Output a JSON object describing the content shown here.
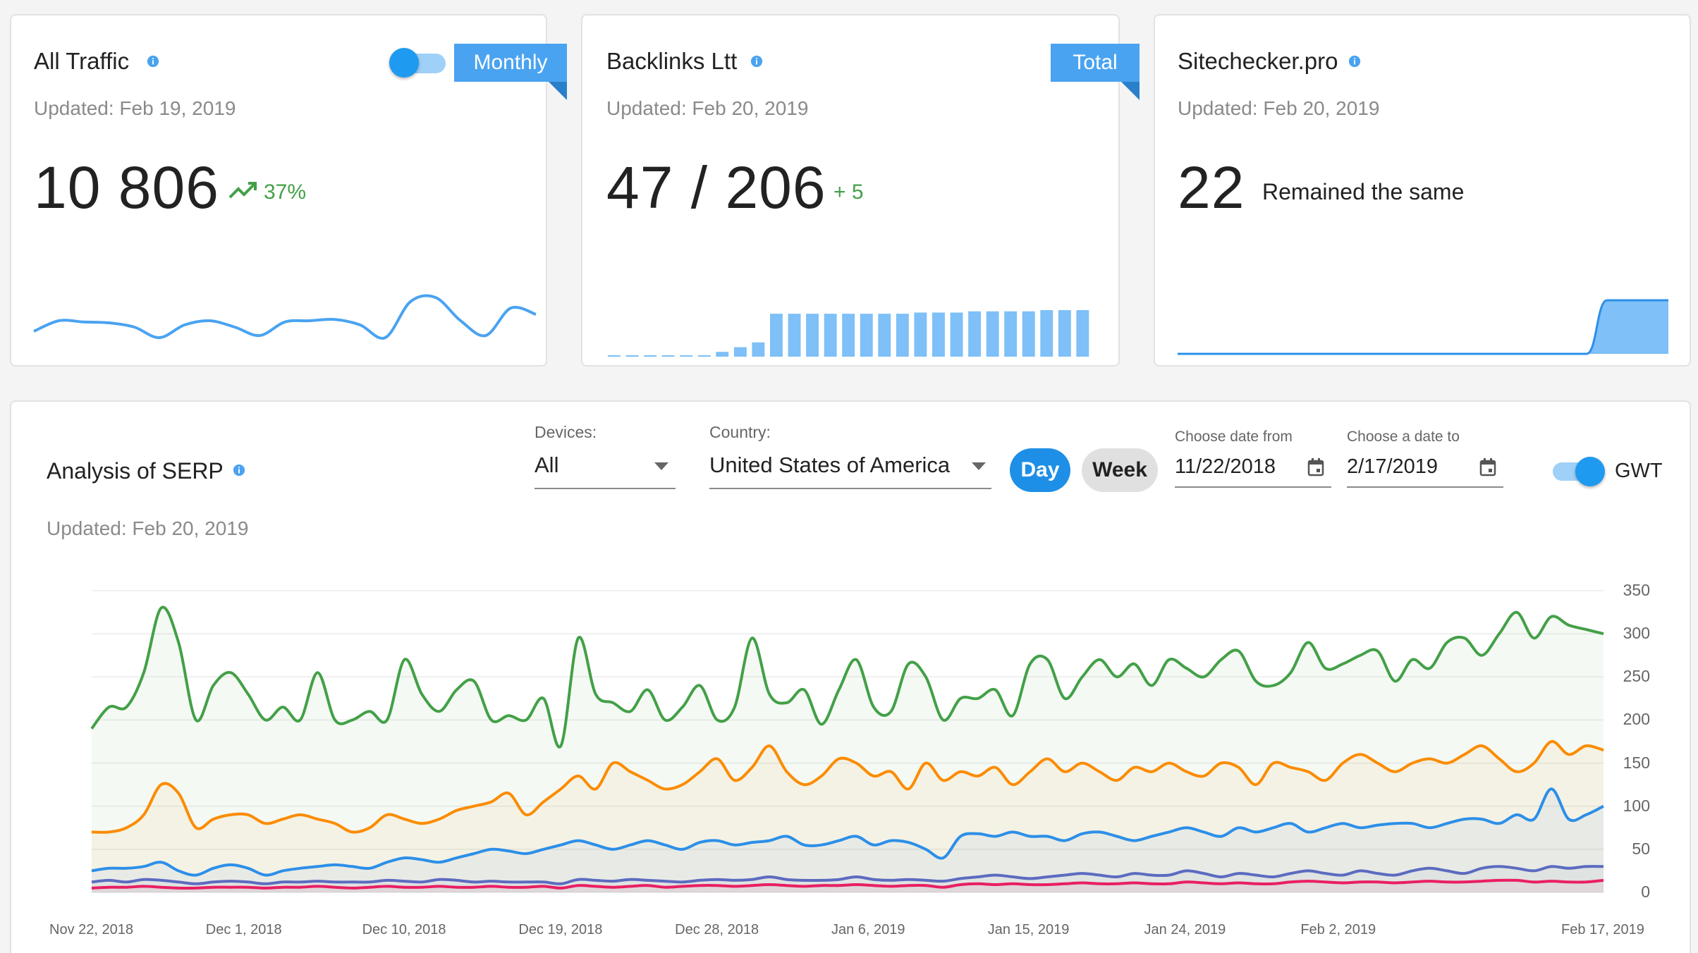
{
  "cards": {
    "traffic": {
      "title": "All Traffic",
      "ribbon": "Monthly",
      "updated": "Updated: Feb 19, 2019",
      "value": "10 806",
      "delta": "37%",
      "sparkline": [
        0.2,
        0.45,
        0.42,
        0.4,
        0.3,
        0.05,
        0.35,
        0.45,
        0.3,
        0.1,
        0.42,
        0.45,
        0.48,
        0.35,
        0.05,
        0.9,
        1.0,
        0.45,
        0.1,
        0.75,
        0.6
      ],
      "colors": {
        "line": "#4aa3f0",
        "delta": "#43a047"
      }
    },
    "backlinks": {
      "title": "Backlinks Ltt",
      "ribbon": "Total",
      "updated": "Updated: Feb 20, 2019",
      "value": "47 / 206",
      "delta": "+ 5",
      "bars": [
        1,
        1,
        1,
        1,
        1,
        1,
        4,
        8,
        12,
        36,
        36,
        36,
        36,
        36,
        36,
        36,
        36,
        37,
        37,
        37,
        38,
        38,
        38,
        38,
        39,
        39,
        39
      ],
      "colors": {
        "bar": "#7ec0f7"
      }
    },
    "sitechecker": {
      "title": "Sitechecker.pro",
      "updated": "Updated: Feb 20, 2019",
      "value": "22",
      "note": "Remained the same",
      "area_levels": [
        0,
        0,
        0,
        0,
        0,
        0,
        0,
        0,
        0,
        0,
        0,
        0,
        0,
        0,
        0,
        0,
        0,
        0,
        0,
        0,
        0,
        1,
        1,
        1,
        1
      ],
      "colors": {
        "fill": "#7ec0f7",
        "line": "#2c8fe8"
      }
    }
  },
  "serp": {
    "title": "Analysis of SERP",
    "updated": "Updated: Feb 20, 2019",
    "devices": {
      "label": "Devices:",
      "value": "All"
    },
    "country": {
      "label": "Country:",
      "value": "United States of America"
    },
    "day_label": "Day",
    "week_label": "Week",
    "date_from": {
      "label": "Choose date from",
      "value": "11/22/2018"
    },
    "date_to": {
      "label": "Choose a date to",
      "value": "2/17/2019"
    },
    "gwt_label": "GWT"
  },
  "chart_data": {
    "type": "line",
    "x_labels": [
      "Nov 22, 2018",
      "Dec 1, 2018",
      "Dec 10, 2018",
      "Dec 19, 2018",
      "Dec 28, 2018",
      "Jan 6, 2019",
      "Jan 15, 2019",
      "Jan 24, 2019",
      "Feb 2, 2019",
      "Feb 17, 2019"
    ],
    "x_label_days": [
      0,
      9,
      18,
      27,
      36,
      45,
      54,
      63,
      72,
      87
    ],
    "ylim": [
      0,
      350
    ],
    "yticks": [
      0,
      50,
      100,
      150,
      200,
      250,
      300,
      350
    ],
    "series": [
      {
        "color": "#43a047",
        "values": [
          190,
          215,
          215,
          255,
          330,
          290,
          200,
          240,
          255,
          230,
          200,
          215,
          200,
          255,
          200,
          200,
          210,
          200,
          270,
          230,
          210,
          235,
          245,
          200,
          205,
          200,
          225,
          170,
          295,
          230,
          220,
          210,
          235,
          200,
          215,
          240,
          200,
          215,
          295,
          230,
          220,
          235,
          195,
          235,
          270,
          215,
          210,
          265,
          250,
          200,
          225,
          225,
          235,
          205,
          265,
          270,
          225,
          250,
          270,
          250,
          265,
          240,
          270,
          260,
          250,
          270,
          280,
          245,
          240,
          255,
          290,
          260,
          265,
          275,
          280,
          245,
          270,
          260,
          290,
          295,
          275,
          300,
          325,
          295,
          320,
          310,
          305,
          300
        ]
      },
      {
        "color": "#fb8c00",
        "values": [
          70,
          70,
          75,
          90,
          125,
          115,
          75,
          85,
          90,
          90,
          80,
          85,
          90,
          85,
          80,
          70,
          75,
          90,
          85,
          80,
          85,
          95,
          100,
          105,
          115,
          90,
          105,
          120,
          135,
          120,
          150,
          140,
          130,
          120,
          125,
          140,
          155,
          130,
          145,
          170,
          140,
          125,
          135,
          155,
          150,
          135,
          140,
          120,
          150,
          130,
          140,
          135,
          145,
          125,
          140,
          155,
          140,
          150,
          140,
          130,
          145,
          140,
          150,
          140,
          135,
          150,
          145,
          125,
          150,
          145,
          140,
          130,
          150,
          160,
          150,
          140,
          150,
          155,
          150,
          160,
          170,
          155,
          140,
          150,
          175,
          160,
          170,
          165
        ]
      },
      {
        "color": "#2c8fe8",
        "values": [
          25,
          28,
          28,
          30,
          35,
          25,
          20,
          28,
          32,
          28,
          20,
          25,
          28,
          30,
          32,
          30,
          28,
          35,
          40,
          38,
          35,
          40,
          45,
          50,
          48,
          45,
          50,
          55,
          60,
          55,
          50,
          55,
          60,
          55,
          50,
          58,
          60,
          55,
          58,
          60,
          65,
          55,
          55,
          60,
          65,
          55,
          60,
          58,
          50,
          40,
          65,
          68,
          65,
          70,
          65,
          65,
          60,
          68,
          70,
          65,
          60,
          65,
          70,
          75,
          70,
          65,
          75,
          70,
          75,
          80,
          70,
          75,
          80,
          75,
          78,
          80,
          80,
          75,
          80,
          85,
          85,
          80,
          90,
          85,
          120,
          85,
          90,
          100
        ]
      },
      {
        "color": "#5c6bc0",
        "values": [
          12,
          14,
          12,
          15,
          14,
          12,
          10,
          12,
          13,
          12,
          10,
          12,
          12,
          13,
          12,
          12,
          12,
          14,
          13,
          12,
          15,
          14,
          12,
          13,
          12,
          12,
          12,
          10,
          15,
          14,
          13,
          15,
          14,
          13,
          12,
          14,
          15,
          14,
          15,
          18,
          15,
          14,
          14,
          15,
          18,
          15,
          14,
          15,
          14,
          13,
          16,
          18,
          20,
          18,
          16,
          18,
          20,
          22,
          20,
          18,
          22,
          20,
          20,
          25,
          22,
          18,
          22,
          20,
          18,
          22,
          25,
          22,
          20,
          25,
          22,
          20,
          25,
          28,
          25,
          22,
          28,
          30,
          28,
          25,
          30,
          28,
          30,
          30
        ]
      },
      {
        "color": "#e91e63",
        "values": [
          5,
          6,
          6,
          7,
          6,
          5,
          5,
          6,
          6,
          6,
          5,
          6,
          6,
          7,
          6,
          5,
          6,
          7,
          6,
          6,
          7,
          6,
          6,
          7,
          6,
          6,
          7,
          5,
          8,
          7,
          6,
          7,
          8,
          6,
          7,
          8,
          8,
          7,
          8,
          9,
          8,
          7,
          8,
          8,
          9,
          8,
          7,
          8,
          8,
          6,
          9,
          10,
          9,
          10,
          9,
          9,
          10,
          11,
          10,
          10,
          11,
          10,
          10,
          12,
          11,
          10,
          11,
          10,
          10,
          12,
          13,
          12,
          11,
          12,
          12,
          11,
          12,
          13,
          12,
          12,
          13,
          14,
          14,
          12,
          13,
          12,
          12,
          14
        ]
      }
    ]
  }
}
